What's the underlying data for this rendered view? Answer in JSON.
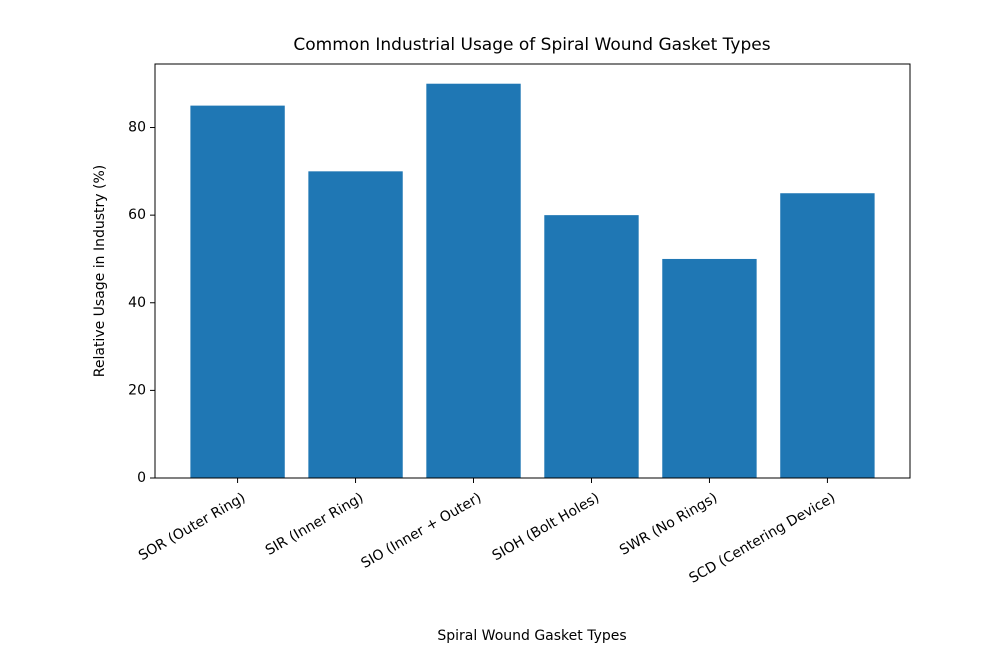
{
  "chart_data": {
    "type": "bar",
    "title": "Common Industrial Usage of Spiral Wound Gasket Types",
    "x_label": "Spiral Wound Gasket Types",
    "y_label": "Relative Usage in Industry (%)",
    "categories": [
      "SOR (Outer Ring)",
      "SIR (Inner Ring)",
      "SIO (Inner + Outer)",
      "SIOH (Bolt Holes)",
      "SWR (No Rings)",
      "SCD (Centering Device)"
    ],
    "values": [
      85,
      70,
      90,
      60,
      50,
      65
    ],
    "color": "#1f77b4",
    "ylim": [
      0,
      94.5
    ],
    "yticks": [
      0,
      20,
      40,
      60,
      80
    ]
  }
}
